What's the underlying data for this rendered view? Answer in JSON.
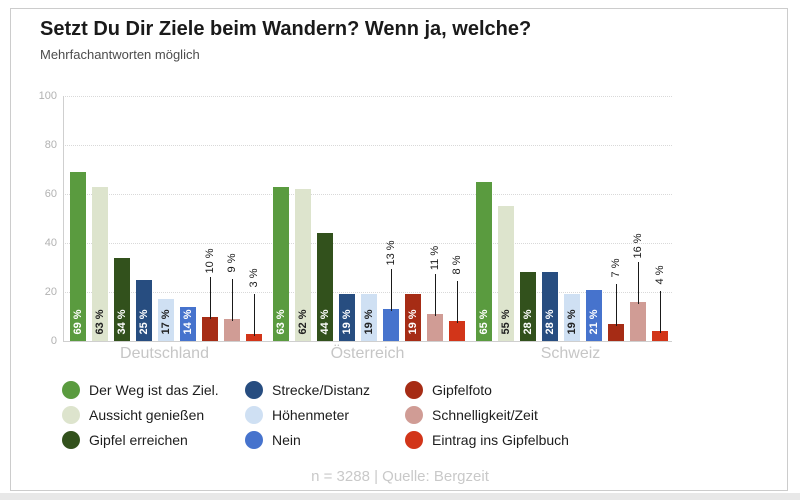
{
  "header": {
    "title": "Setzt Du Dir Ziele beim Wandern? Wenn ja, welche?",
    "subtitle": "Mehrfachantworten möglich"
  },
  "footer": {
    "note": "n = 3288 | Quelle: Bergzeit"
  },
  "chart_data": {
    "type": "bar",
    "title": "Setzt Du Dir Ziele beim Wandern? Wenn ja, welche?",
    "subtitle": "Mehrfachantworten möglich",
    "source_note": "n = 3288 | Quelle: Bergzeit",
    "categories": [
      "Deutschland",
      "Österreich",
      "Schweiz"
    ],
    "value_suffix": " %",
    "ylim": [
      0,
      100
    ],
    "yticks": [
      0,
      20,
      40,
      60,
      80,
      100
    ],
    "grid": "horizontal-dotted",
    "legend_position": "bottom",
    "series": [
      {
        "name": "Der Weg ist das Ziel.",
        "color": "#5a9b3f",
        "label_color": "#ffffff",
        "values": [
          69,
          63,
          65
        ],
        "label_outside": [
          false,
          false,
          false
        ]
      },
      {
        "name": "Aussicht genießen",
        "color": "#dde4cd",
        "label_color": "#222222",
        "values": [
          63,
          62,
          55
        ],
        "label_outside": [
          false,
          false,
          false
        ]
      },
      {
        "name": "Gipfel erreichen",
        "color": "#32511c",
        "label_color": "#ffffff",
        "values": [
          34,
          44,
          28
        ],
        "label_outside": [
          false,
          false,
          false
        ]
      },
      {
        "name": "Strecke/Distanz",
        "color": "#274d80",
        "label_color": "#ffffff",
        "values": [
          25,
          19,
          28
        ],
        "label_outside": [
          false,
          false,
          false
        ]
      },
      {
        "name": "Höhenmeter",
        "color": "#cfe0f3",
        "label_color": "#222222",
        "values": [
          17,
          19,
          19
        ],
        "label_outside": [
          false,
          false,
          false
        ]
      },
      {
        "name": "Nein",
        "color": "#4673cd",
        "label_color": "#ffffff",
        "values": [
          14,
          13,
          21
        ],
        "label_outside": [
          false,
          true,
          false
        ]
      },
      {
        "name": "Gipfelfoto",
        "color": "#a62c15",
        "label_color": "#ffffff",
        "values": [
          10,
          19,
          7
        ],
        "label_outside": [
          true,
          false,
          true
        ]
      },
      {
        "name": "Schnelligkeit/Zeit",
        "color": "#d09c95",
        "label_color": "#222222",
        "values": [
          9,
          11,
          16
        ],
        "label_outside": [
          true,
          true,
          true
        ]
      },
      {
        "name": "Eintrag ins Gipfelbuch",
        "color": "#d23519",
        "label_color": "#ffffff",
        "values": [
          3,
          8,
          4
        ],
        "label_outside": [
          true,
          true,
          true
        ]
      }
    ]
  }
}
